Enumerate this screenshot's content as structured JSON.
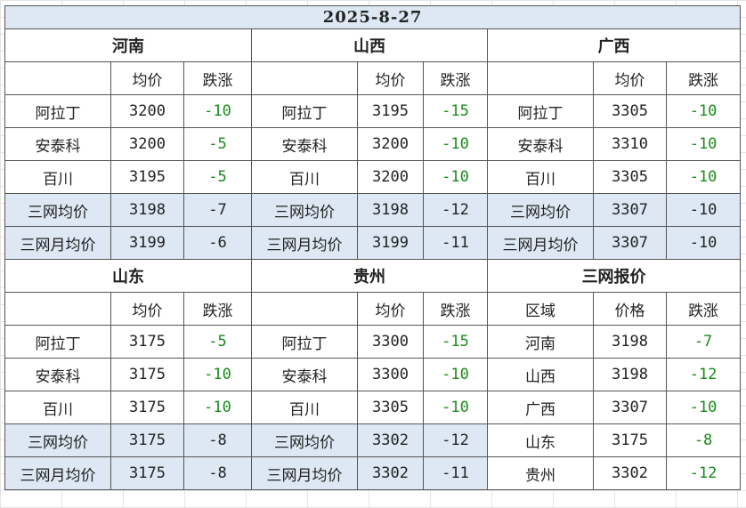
{
  "date": "2025-8-27",
  "header": {
    "avg": "均价",
    "change": "跌涨"
  },
  "blocks": [
    {
      "region": "河南",
      "rows": [
        {
          "name": "阿拉丁",
          "price": "3200",
          "change": "-10"
        },
        {
          "name": "安泰科",
          "price": "3200",
          "change": "-5"
        },
        {
          "name": "百川",
          "price": "3195",
          "change": "-5"
        }
      ],
      "avg": {
        "name": "三网均价",
        "price": "3198",
        "change": "-7"
      },
      "month_avg": {
        "name": "三网月均价",
        "price": "3199",
        "change": "-6"
      }
    },
    {
      "region": "山西",
      "rows": [
        {
          "name": "阿拉丁",
          "price": "3195",
          "change": "-15"
        },
        {
          "name": "安泰科",
          "price": "3200",
          "change": "-10"
        },
        {
          "name": "百川",
          "price": "3200",
          "change": "-10"
        }
      ],
      "avg": {
        "name": "三网均价",
        "price": "3198",
        "change": "-12"
      },
      "month_avg": {
        "name": "三网月均价",
        "price": "3199",
        "change": "-11"
      }
    },
    {
      "region": "广西",
      "rows": [
        {
          "name": "阿拉丁",
          "price": "3305",
          "change": "-10"
        },
        {
          "name": "安泰科",
          "price": "3310",
          "change": "-10"
        },
        {
          "name": "百川",
          "price": "3305",
          "change": "-10"
        }
      ],
      "avg": {
        "name": "三网均价",
        "price": "3307",
        "change": "-10"
      },
      "month_avg": {
        "name": "三网月均价",
        "price": "3307",
        "change": "-10"
      }
    },
    {
      "region": "山东",
      "rows": [
        {
          "name": "阿拉丁",
          "price": "3175",
          "change": "-5"
        },
        {
          "name": "安泰科",
          "price": "3175",
          "change": "-10"
        },
        {
          "name": "百川",
          "price": "3175",
          "change": "-10"
        }
      ],
      "avg": {
        "name": "三网均价",
        "price": "3175",
        "change": "-8"
      },
      "month_avg": {
        "name": "三网月均价",
        "price": "3175",
        "change": "-8"
      }
    },
    {
      "region": "贵州",
      "rows": [
        {
          "name": "阿拉丁",
          "price": "3300",
          "change": "-15"
        },
        {
          "name": "安泰科",
          "price": "3300",
          "change": "-10"
        },
        {
          "name": "百川",
          "price": "3305",
          "change": "-10"
        }
      ],
      "avg": {
        "name": "三网均价",
        "price": "3302",
        "change": "-12"
      },
      "month_avg": {
        "name": "三网月均价",
        "price": "3302",
        "change": "-11"
      }
    }
  ],
  "quote": {
    "title": "三网报价",
    "headers": {
      "region": "区域",
      "price": "价格",
      "change": "跌涨"
    },
    "rows": [
      {
        "region": "河南",
        "price": "3198",
        "change": "-7"
      },
      {
        "region": "山西",
        "price": "3198",
        "change": "-12"
      },
      {
        "region": "广西",
        "price": "3307",
        "change": "-10"
      },
      {
        "region": "山东",
        "price": "3175",
        "change": "-8"
      },
      {
        "region": "贵州",
        "price": "3302",
        "change": "-12"
      }
    ]
  },
  "colors": {
    "header_fill": "#dde8f4",
    "negative_change": "#1a8a1a",
    "border": "#555555"
  }
}
